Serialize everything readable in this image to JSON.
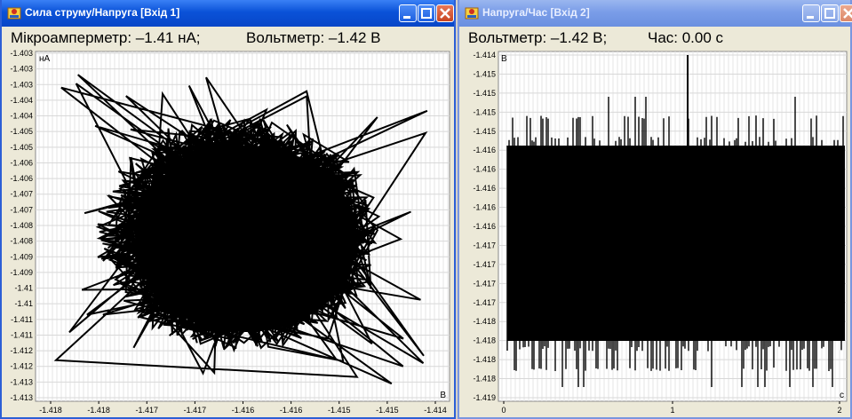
{
  "windows": [
    {
      "title": "Сила струму/Напруга [Вхід 1]",
      "status": {
        "left": "Мікроамперметр: –1.41 нА;",
        "right": "Вольтметр: –1.42 В"
      },
      "y_unit": "нА",
      "x_unit": "В",
      "y_ticks": [
        "-1.403",
        "-1.403",
        "-1.403",
        "-1.404",
        "-1.404",
        "-1.405",
        "-1.405",
        "-1.406",
        "-1.406",
        "-1.407",
        "-1.407",
        "-1.408",
        "-1.408",
        "-1.409",
        "-1.409",
        "-1.41",
        "-1.41",
        "-1.411",
        "-1.411",
        "-1.412",
        "-1.412",
        "-1.413",
        "-1.413"
      ],
      "x_ticks": [
        "-1.418",
        "-1.418",
        "-1.417",
        "-1.417",
        "-1.416",
        "-1.416",
        "-1.415",
        "-1.415",
        "-1.414"
      ]
    },
    {
      "title": "Напруга/Час [Вхід 2]",
      "status": {
        "left": "Вольтметр: –1.42 В;",
        "right": "Час: 0.00 с"
      },
      "y_unit": "В",
      "x_unit": "с",
      "y_ticks": [
        "-1.414",
        "-1.415",
        "-1.415",
        "-1.415",
        "-1.415",
        "-1.416",
        "-1.416",
        "-1.416",
        "-1.416",
        "-1.416",
        "-1.417",
        "-1.417",
        "-1.417",
        "-1.417",
        "-1.418",
        "-1.418",
        "-1.418",
        "-1.418",
        "-1.419"
      ],
      "x_ticks": [
        "0",
        "1",
        "2"
      ]
    }
  ],
  "chart_data": [
    {
      "type": "line",
      "title": "",
      "xlabel": "В",
      "ylabel": "нА",
      "xlim": [
        -1.4185,
        -1.4138
      ],
      "ylim": [
        -1.4133,
        -1.4028
      ],
      "grid": true,
      "description_series": "dense XY trace of current vs voltage"
    },
    {
      "type": "line",
      "title": "",
      "xlabel": "с",
      "ylabel": "В",
      "xlim": [
        0,
        2.1
      ],
      "ylim": [
        -1.4191,
        -1.4139
      ],
      "baseline_upper": -1.4156,
      "baseline_lower": -1.418,
      "grid": true
    }
  ]
}
